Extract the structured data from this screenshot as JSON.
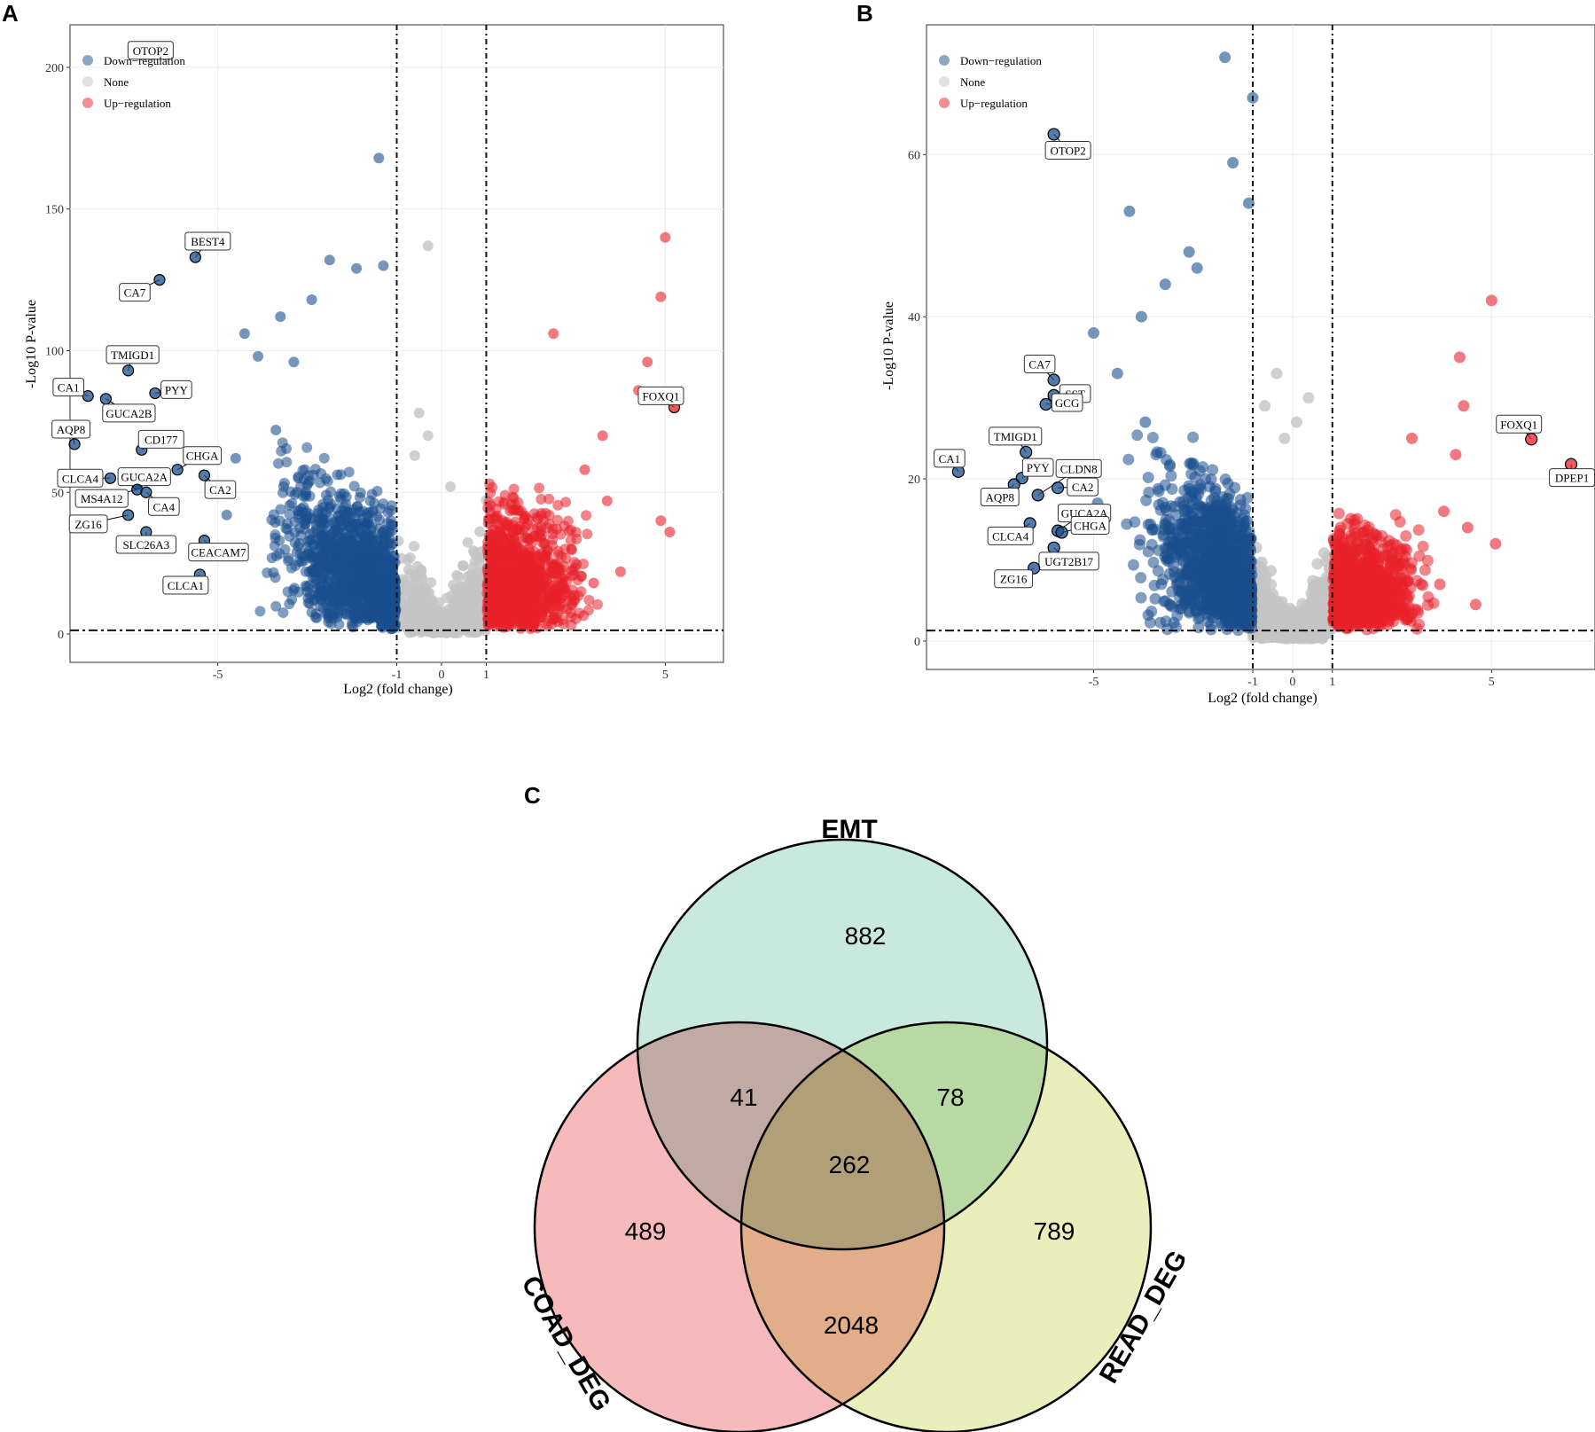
{
  "panels": {
    "a": "A",
    "b": "B",
    "c": "C"
  },
  "colors": {
    "down": "#1a4f8e",
    "none": "#c4c4c4",
    "up": "#e8202a"
  },
  "chart_data": [
    {
      "type": "scatter",
      "title": "",
      "xlabel": "Log2 (fold change)",
      "ylabel": "-Log10 P-value",
      "xlim": [
        -8.3,
        6.3
      ],
      "ylim": [
        -10,
        215
      ],
      "xticks": [
        -5,
        -1,
        0,
        1,
        5
      ],
      "yticks": [
        0,
        50,
        100,
        150,
        200
      ],
      "thresholds": {
        "logfc": [
          -1,
          1
        ],
        "p": 1.3
      },
      "legend": [
        "Down−regulation",
        "None",
        "Up−regulation"
      ],
      "labeled_points": [
        {
          "gene": "OTOP2",
          "x": -6.5,
          "y": 206,
          "group": "down"
        },
        {
          "gene": "BEST4",
          "x": -5.5,
          "y": 133,
          "group": "down"
        },
        {
          "gene": "CA7",
          "x": -6.3,
          "y": 125,
          "group": "down"
        },
        {
          "gene": "TMIGD1",
          "x": -7.0,
          "y": 93,
          "group": "down"
        },
        {
          "gene": "CA1",
          "x": -7.9,
          "y": 84,
          "group": "down"
        },
        {
          "gene": "PYY",
          "x": -6.4,
          "y": 85,
          "group": "down"
        },
        {
          "gene": "GUCA2B",
          "x": -7.5,
          "y": 83,
          "group": "down"
        },
        {
          "gene": "AQP8",
          "x": -8.2,
          "y": 67,
          "group": "down"
        },
        {
          "gene": "CD177",
          "x": -6.7,
          "y": 65,
          "group": "down"
        },
        {
          "gene": "CHGA",
          "x": -5.9,
          "y": 58,
          "group": "down"
        },
        {
          "gene": "CLCA4",
          "x": -7.4,
          "y": 55,
          "group": "down"
        },
        {
          "gene": "GUCA2A",
          "x": -6.8,
          "y": 53,
          "group": "down"
        },
        {
          "gene": "CA2",
          "x": -5.3,
          "y": 56,
          "group": "down"
        },
        {
          "gene": "MS4A12",
          "x": -6.8,
          "y": 51,
          "group": "down"
        },
        {
          "gene": "CA4",
          "x": -6.6,
          "y": 50,
          "group": "down"
        },
        {
          "gene": "ZG16",
          "x": -7.0,
          "y": 42,
          "group": "down"
        },
        {
          "gene": "SLC26A3",
          "x": -6.6,
          "y": 36,
          "group": "down"
        },
        {
          "gene": "CEACAM7",
          "x": -5.3,
          "y": 33,
          "group": "down"
        },
        {
          "gene": "CLCA1",
          "x": -5.4,
          "y": 21,
          "group": "down"
        },
        {
          "gene": "FOXQ1",
          "x": 5.2,
          "y": 80,
          "group": "up"
        }
      ]
    },
    {
      "type": "scatter",
      "title": "",
      "xlabel": "Log2 (fold change)",
      "ylabel": "-Log10 P-value",
      "xlim": [
        -9.2,
        7.6
      ],
      "ylim": [
        -3.5,
        76
      ],
      "xticks": [
        -5,
        -1,
        0,
        1,
        5
      ],
      "yticks": [
        0,
        20,
        40,
        60
      ],
      "thresholds": {
        "logfc": [
          -1,
          1
        ],
        "p": 1.3
      },
      "legend": [
        "Down−regulation",
        "None",
        "Up−regulation"
      ],
      "labeled_points": [
        {
          "gene": "OTOP2",
          "x": -6.0,
          "y": 62.5,
          "group": "down"
        },
        {
          "gene": "CA7",
          "x": -6.0,
          "y": 32.2,
          "group": "down"
        },
        {
          "gene": "SST",
          "x": -6.0,
          "y": 30.3,
          "group": "down"
        },
        {
          "gene": "GCG",
          "x": -6.2,
          "y": 29.2,
          "group": "down"
        },
        {
          "gene": "TMIGD1",
          "x": -6.7,
          "y": 23.3,
          "group": "down"
        },
        {
          "gene": "CA1",
          "x": -8.4,
          "y": 20.9,
          "group": "down"
        },
        {
          "gene": "PYY",
          "x": -6.8,
          "y": 20.1,
          "group": "down"
        },
        {
          "gene": "CLDN8",
          "x": -6.4,
          "y": 18.0,
          "group": "down"
        },
        {
          "gene": "AQP8",
          "x": -7.0,
          "y": 19.3,
          "group": "down"
        },
        {
          "gene": "CA2",
          "x": -5.9,
          "y": 18.9,
          "group": "down"
        },
        {
          "gene": "GUCA2A",
          "x": -5.9,
          "y": 13.6,
          "group": "down"
        },
        {
          "gene": "CLCA4",
          "x": -6.6,
          "y": 14.5,
          "group": "down"
        },
        {
          "gene": "CHGA",
          "x": -5.8,
          "y": 13.4,
          "group": "down"
        },
        {
          "gene": "UGT2B17",
          "x": -6.0,
          "y": 11.5,
          "group": "down"
        },
        {
          "gene": "ZG16",
          "x": -6.5,
          "y": 9.0,
          "group": "down"
        },
        {
          "gene": "FOXQ1",
          "x": 6.0,
          "y": 24.9,
          "group": "up"
        },
        {
          "gene": "DPEP1",
          "x": 7.0,
          "y": 21.8,
          "group": "up"
        }
      ]
    },
    {
      "type": "venn",
      "sets": [
        "EMT",
        "COAD_DEG",
        "READ_DEG"
      ],
      "regions": {
        "EMT_only": 882,
        "COAD_only": 489,
        "READ_only": 789,
        "EMT_COAD": 41,
        "EMT_READ": 78,
        "COAD_READ": 2048,
        "all": 262
      },
      "set_colors": [
        "#bfe5d9",
        "#f6aeb0",
        "#e6ebae"
      ]
    }
  ]
}
